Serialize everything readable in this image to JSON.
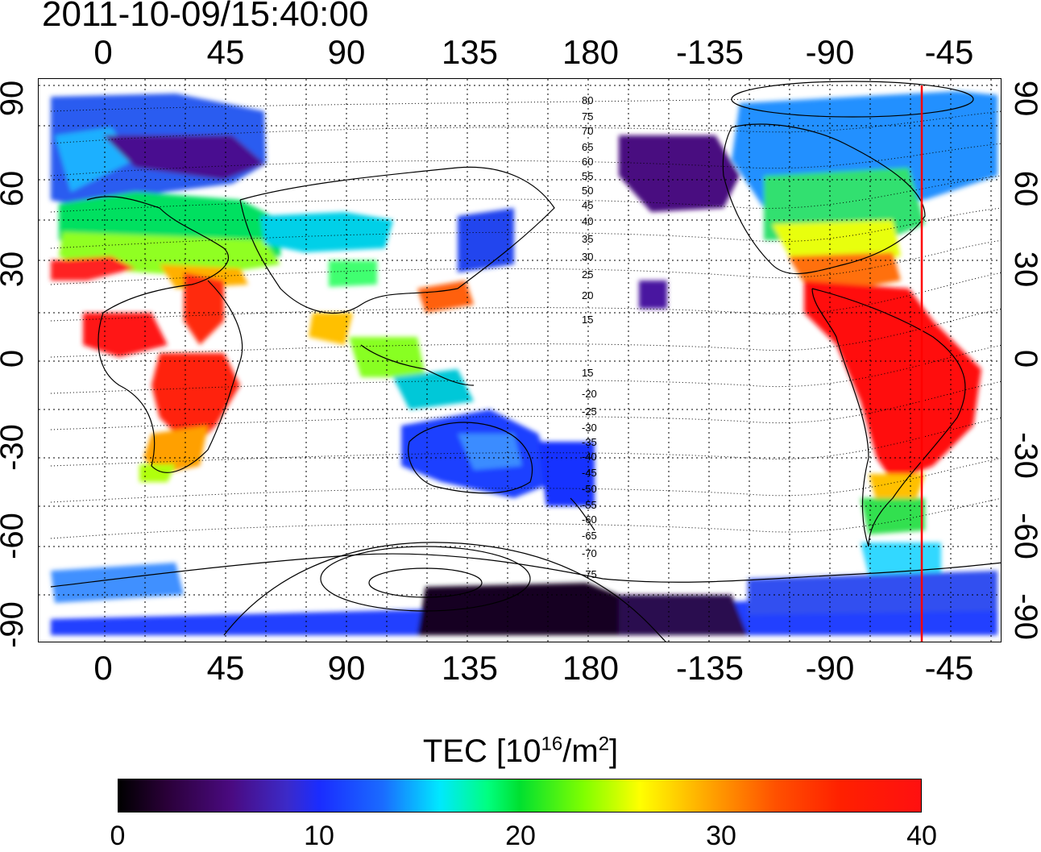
{
  "timestamp": "2011-10-09/15:40:00",
  "map": {
    "lon_ticks": [
      "0",
      "45",
      "90",
      "135",
      "180",
      "-135",
      "-90",
      "-45"
    ],
    "lat_ticks": [
      "90",
      "60",
      "30",
      "0",
      "-30",
      "-60",
      "-90"
    ],
    "magnetic_latitude_labels": [
      "80",
      "75",
      "70",
      "65",
      "60",
      "55",
      "50",
      "45",
      "40",
      "35",
      "30",
      "25",
      "20",
      "15",
      "15",
      "-20",
      "-25",
      "-30",
      "-35",
      "-40",
      "-45",
      "-50",
      "-55",
      "-60",
      "-65",
      "-70",
      "-75"
    ],
    "terminator_line_color": "#ff0000",
    "grid": "dotted"
  },
  "colorbar": {
    "title_prefix": "TEC  [10",
    "title_exp1": "16",
    "title_mid": "/m",
    "title_exp2": "2",
    "title_suffix": "]",
    "ticks": [
      "0",
      "10",
      "20",
      "30",
      "40"
    ],
    "min": 0,
    "max": 40
  }
}
